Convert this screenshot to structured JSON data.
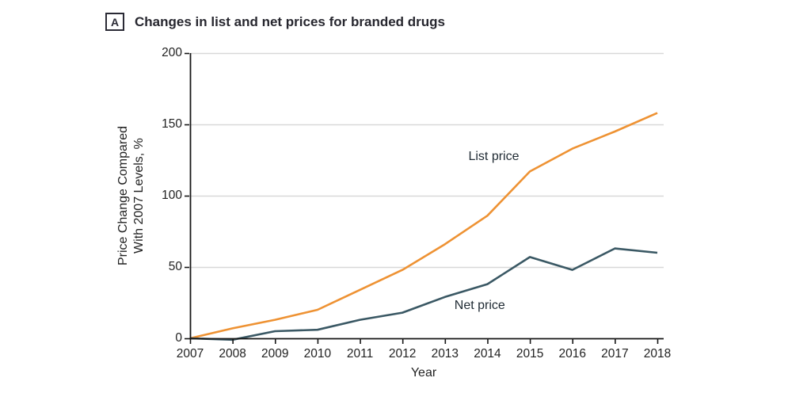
{
  "panel": {
    "label": "A",
    "title": "Changes in list and net prices for branded drugs"
  },
  "style": {
    "grid_color": "#D8D8D8",
    "axis_color": "#161616",
    "text_color": "#222222",
    "title_color": "#26262E"
  },
  "chart_data": {
    "type": "line",
    "title": "Changes in list and net prices for branded drugs",
    "x": [
      2007,
      2008,
      2009,
      2010,
      2011,
      2012,
      2013,
      2014,
      2015,
      2016,
      2017,
      2018
    ],
    "series": [
      {
        "name": "List price",
        "color": "#EE9233",
        "values": [
          0,
          7,
          13,
          20,
          34,
          48,
          66,
          86,
          117,
          133,
          145,
          158
        ]
      },
      {
        "name": "Net price",
        "color": "#3A5864",
        "values": [
          0,
          -1,
          5,
          6,
          13,
          18,
          29,
          38,
          57,
          48,
          63,
          60
        ]
      }
    ],
    "annotations": [
      {
        "series": 0,
        "text": "List price",
        "x": 2014.15,
        "y": 127
      },
      {
        "series": 1,
        "text": "Net price",
        "x": 2013.82,
        "y": 23
      }
    ],
    "xlabel": "Year",
    "ylabel_line1": "Price Change Compared",
    "ylabel_line2": "With 2007 Levels, %",
    "ylim": [
      0,
      200
    ],
    "yticks": [
      0,
      50,
      100,
      150,
      200
    ],
    "grid": "horizontal",
    "legend_position": "inline-labels"
  }
}
